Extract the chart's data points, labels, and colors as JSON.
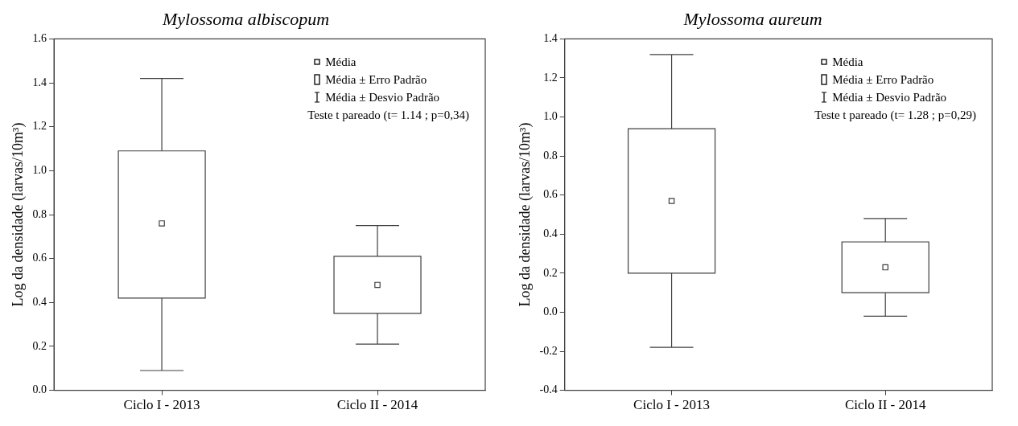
{
  "chart_data": [
    {
      "type": "box",
      "title": "Mylossoma albiscopum",
      "ylabel": "Log da densidade (larvas/10m³)",
      "categories": [
        "Ciclo I - 2013",
        "Ciclo II - 2014"
      ],
      "color": "#404040",
      "boxes": [
        {
          "low": 0.09,
          "q1": 0.42,
          "q3": 1.09,
          "high": 1.42,
          "mean": 0.76
        },
        {
          "low": 0.21,
          "q1": 0.35,
          "q3": 0.61,
          "high": 0.75,
          "mean": 0.48
        }
      ],
      "ylim": [
        0,
        1.6
      ],
      "yticks": [
        {
          "value": 0,
          "label": "0.0"
        },
        {
          "value": 0.2,
          "label": "0.2"
        },
        {
          "value": 0.4,
          "label": "0.4"
        },
        {
          "value": 0.6,
          "label": "0.6"
        },
        {
          "value": 0.8,
          "label": "0.8"
        },
        {
          "value": 1,
          "label": "1.0"
        },
        {
          "value": 1.2,
          "label": "1.2"
        },
        {
          "value": 1.4,
          "label": "1.4"
        },
        {
          "value": 1.6,
          "label": "1.6"
        }
      ],
      "annotations": [
        "Média",
        "Média ± Erro Padrão",
        "Média ± Desvio Padrão",
        "Teste t pareado (t= 1.14 ; p=0,34)"
      ]
    },
    {
      "type": "box",
      "title": "Mylossoma aureum",
      "ylabel": "Log da densidade (larvas/10m³)",
      "categories": [
        "Ciclo I - 2013",
        "Ciclo II - 2014"
      ],
      "color": "#404040",
      "boxes": [
        {
          "low": -0.18,
          "q1": 0.2,
          "q3": 0.94,
          "high": 1.32,
          "mean": 0.57
        },
        {
          "low": -0.02,
          "q1": 0.1,
          "q3": 0.36,
          "high": 0.48,
          "mean": 0.23
        }
      ],
      "ylim": [
        -0.4,
        1.4
      ],
      "yticks": [
        {
          "value": -0.4,
          "label": "-0.4"
        },
        {
          "value": -0.2,
          "label": "-0.2"
        },
        {
          "value": 0,
          "label": "0.0"
        },
        {
          "value": 0.2,
          "label": "0.2"
        },
        {
          "value": 0.4,
          "label": "0.4"
        },
        {
          "value": 0.6,
          "label": "0.6"
        },
        {
          "value": 0.8,
          "label": "0.8"
        },
        {
          "value": 1,
          "label": "1.0"
        },
        {
          "value": 1.2,
          "label": "1.2"
        },
        {
          "value": 1.4,
          "label": "1.4"
        }
      ],
      "annotations": [
        "Média",
        "Média ± Erro Padrão",
        "Média ± Desvio Padrão",
        "Teste t pareado (t= 1.28 ; p=0,29)"
      ]
    }
  ]
}
